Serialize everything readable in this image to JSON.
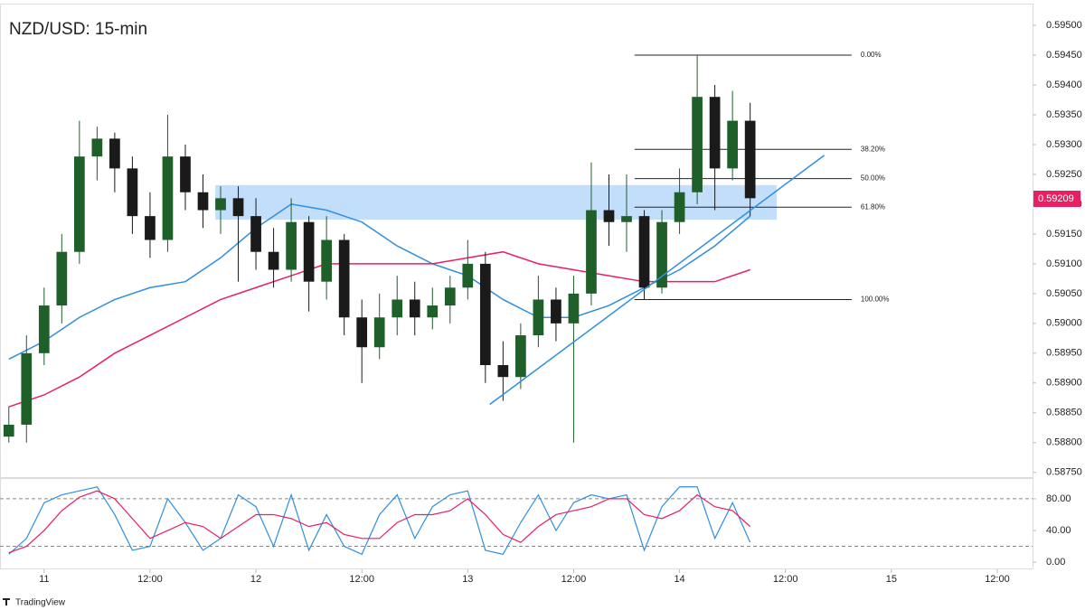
{
  "chart_data": [
    {
      "type": "candlestick",
      "title": "NZD/USD: 15-min",
      "x": [
        -4,
        -2,
        0,
        2,
        4,
        6,
        8,
        10,
        12,
        14,
        16,
        18,
        20,
        22,
        24,
        26,
        28,
        30,
        32,
        34,
        36,
        38,
        40,
        42,
        44,
        46,
        48,
        50,
        52,
        54,
        56,
        58,
        60,
        62,
        64,
        66,
        68,
        70,
        72,
        74,
        76,
        78,
        80
      ],
      "open": [
        0.5881,
        0.5883,
        0.5895,
        0.5903,
        0.5912,
        0.5928,
        0.5931,
        0.5926,
        0.5918,
        0.5914,
        0.5928,
        0.5922,
        0.5919,
        0.5921,
        0.5918,
        0.5912,
        0.5909,
        0.5917,
        0.5907,
        0.5914,
        0.5901,
        0.5896,
        0.5901,
        0.5904,
        0.5901,
        0.5903,
        0.5906,
        0.591,
        0.5893,
        0.5891,
        0.5898,
        0.5904,
        0.59,
        0.5905,
        0.5919,
        0.5917,
        0.5918,
        0.5906,
        0.5917,
        0.5922,
        0.5938,
        0.5926,
        0.5934
      ],
      "high": [
        0.5886,
        0.5898,
        0.5906,
        0.5915,
        0.5934,
        0.5933,
        0.5932,
        0.5928,
        0.5922,
        0.5935,
        0.593,
        0.5925,
        0.5923,
        0.5923,
        0.5921,
        0.5916,
        0.5921,
        0.5918,
        0.5918,
        0.5915,
        0.5904,
        0.5905,
        0.5908,
        0.5907,
        0.5906,
        0.5908,
        0.5914,
        0.5912,
        0.5897,
        0.59,
        0.5908,
        0.5906,
        0.5908,
        0.5927,
        0.5925,
        0.5925,
        0.5919,
        0.5919,
        0.5926,
        0.5945,
        0.594,
        0.5939,
        0.5937
      ],
      "low": [
        0.588,
        0.588,
        0.5893,
        0.59,
        0.591,
        0.5924,
        0.5922,
        0.5915,
        0.5911,
        0.5912,
        0.5919,
        0.5916,
        0.5915,
        0.5907,
        0.5909,
        0.5906,
        0.5907,
        0.5902,
        0.5904,
        0.5898,
        0.589,
        0.5894,
        0.5898,
        0.5898,
        0.5899,
        0.59,
        0.5904,
        0.589,
        0.5887,
        0.5889,
        0.5896,
        0.5897,
        0.588,
        0.5903,
        0.5913,
        0.5912,
        0.5904,
        0.5905,
        0.5915,
        0.592,
        0.5919,
        0.5924,
        0.5918
      ],
      "close": [
        0.5883,
        0.5895,
        0.5903,
        0.5912,
        0.5928,
        0.5931,
        0.5926,
        0.5918,
        0.5914,
        0.5928,
        0.5922,
        0.5919,
        0.5921,
        0.5918,
        0.5912,
        0.5909,
        0.5917,
        0.5907,
        0.5914,
        0.5901,
        0.5896,
        0.5901,
        0.5904,
        0.5901,
        0.5903,
        0.5906,
        0.591,
        0.5893,
        0.5891,
        0.5898,
        0.5904,
        0.59,
        0.5905,
        0.5919,
        0.5917,
        0.5918,
        0.5906,
        0.5917,
        0.5922,
        0.5938,
        0.5926,
        0.5934,
        0.5921
      ],
      "up_color": "#1e5f2a",
      "down_color": "#1a1a1a",
      "xlim": [
        -5,
        112
      ],
      "xticks": [
        {
          "value": 0,
          "label": "11"
        },
        {
          "value": 12,
          "label": "12:00"
        },
        {
          "value": 24,
          "label": "12"
        },
        {
          "value": 36,
          "label": "12:00"
        },
        {
          "value": 48,
          "label": "13"
        },
        {
          "value": 60,
          "label": "12:00"
        },
        {
          "value": 72,
          "label": "14"
        },
        {
          "value": 84,
          "label": "12:00"
        },
        {
          "value": 96,
          "label": "15"
        },
        {
          "value": 108,
          "label": "12:00"
        }
      ],
      "ylim": [
        0.58742,
        0.59535
      ],
      "yticks": [
        {
          "value": 0.5875,
          "label": "0.58750"
        },
        {
          "value": 0.588,
          "label": "0.58800"
        },
        {
          "value": 0.5885,
          "label": "0.58850"
        },
        {
          "value": 0.589,
          "label": "0.58900"
        },
        {
          "value": 0.5895,
          "label": "0.58950"
        },
        {
          "value": 0.59,
          "label": "0.59000"
        },
        {
          "value": 0.5905,
          "label": "0.59050"
        },
        {
          "value": 0.591,
          "label": "0.59100"
        },
        {
          "value": 0.5915,
          "label": "0.59150"
        },
        {
          "value": 0.592,
          "label": "0.59200"
        },
        {
          "value": 0.5925,
          "label": "0.59250"
        },
        {
          "value": 0.593,
          "label": "0.59300"
        },
        {
          "value": 0.5935,
          "label": "0.59350"
        },
        {
          "value": 0.594,
          "label": "0.59400"
        },
        {
          "value": 0.5945,
          "label": "0.59450"
        },
        {
          "value": 0.595,
          "label": "0.59500"
        }
      ],
      "ma_x": [
        -4,
        0,
        4,
        8,
        12,
        16,
        20,
        24,
        28,
        32,
        36,
        40,
        44,
        48,
        52,
        56,
        60,
        64,
        68,
        72,
        76,
        80
      ],
      "moving_averages": [
        {
          "color": "#2f8fe0",
          "values": [
            0.5894,
            0.5897,
            0.5901,
            0.5904,
            0.5906,
            0.5907,
            0.5911,
            0.5916,
            0.592,
            0.5919,
            0.5917,
            0.5913,
            0.591,
            0.5908,
            0.5904,
            0.5901,
            0.5901,
            0.5903,
            0.5906,
            0.5909,
            0.5913,
            0.5918
          ]
        },
        {
          "color": "#e91e63",
          "values": [
            0.5886,
            0.5888,
            0.5891,
            0.5895,
            0.5898,
            0.5901,
            0.5904,
            0.5906,
            0.5908,
            0.591,
            0.591,
            0.591,
            0.591,
            0.5911,
            0.5912,
            0.591,
            0.5909,
            0.5908,
            0.5907,
            0.5907,
            0.5907,
            0.5909
          ]
        }
      ],
      "zone": {
        "x": [
          19.4,
          83
        ],
        "y": [
          0.59174,
          0.59232
        ],
        "color": "#90c2f5"
      },
      "trendline": {
        "x": [
          50.5,
          88.4
        ],
        "y": [
          0.58864,
          0.59282
        ],
        "color": "#2f8fe0"
      },
      "fibonacci": {
        "x": [
          66.9,
          91.5
        ],
        "levels": [
          {
            "ratio": 0,
            "label": "0.00%",
            "price": 0.5945
          },
          {
            "ratio": 38.2,
            "label": "38.20%",
            "price": 0.59292
          },
          {
            "ratio": 50,
            "label": "50.00%",
            "price": 0.59243
          },
          {
            "ratio": 61.8,
            "label": "61.80%",
            "price": 0.59195
          },
          {
            "ratio": 100,
            "label": "100.00%",
            "price": 0.5904
          }
        ]
      },
      "last_price": 0.59209,
      "last_price_color": "#e91e63"
    },
    {
      "type": "line",
      "x": [
        -4,
        -2,
        0,
        2,
        4,
        6,
        8,
        10,
        12,
        14,
        16,
        18,
        20,
        22,
        24,
        26,
        28,
        30,
        32,
        34,
        36,
        38,
        40,
        42,
        44,
        46,
        48,
        50,
        52,
        54,
        56,
        58,
        60,
        62,
        64,
        66,
        68,
        70,
        72,
        74,
        76,
        78,
        80
      ],
      "series": [
        {
          "color": "#2f8fe0",
          "values": [
            10,
            30,
            75,
            85,
            90,
            95,
            60,
            15,
            20,
            80,
            50,
            15,
            30,
            85,
            70,
            20,
            85,
            15,
            60,
            20,
            10,
            60,
            85,
            30,
            70,
            85,
            90,
            15,
            10,
            50,
            85,
            40,
            75,
            85,
            80,
            85,
            15,
            70,
            95,
            95,
            30,
            75,
            25
          ]
        },
        {
          "color": "#e91e63",
          "values": [
            12,
            20,
            40,
            65,
            82,
            90,
            80,
            55,
            30,
            40,
            50,
            45,
            30,
            45,
            60,
            60,
            55,
            45,
            50,
            35,
            30,
            30,
            50,
            60,
            60,
            65,
            80,
            60,
            35,
            25,
            45,
            60,
            65,
            70,
            80,
            80,
            60,
            55,
            65,
            85,
            70,
            65,
            45
          ]
        }
      ],
      "ylim": [
        -9,
        105
      ],
      "yticks": [
        {
          "value": 0,
          "label": "0.00"
        },
        {
          "value": 40,
          "label": "40.00"
        },
        {
          "value": 80,
          "label": "80.00"
        }
      ],
      "bands": [
        20,
        80
      ]
    }
  ],
  "footer": "TradingView"
}
